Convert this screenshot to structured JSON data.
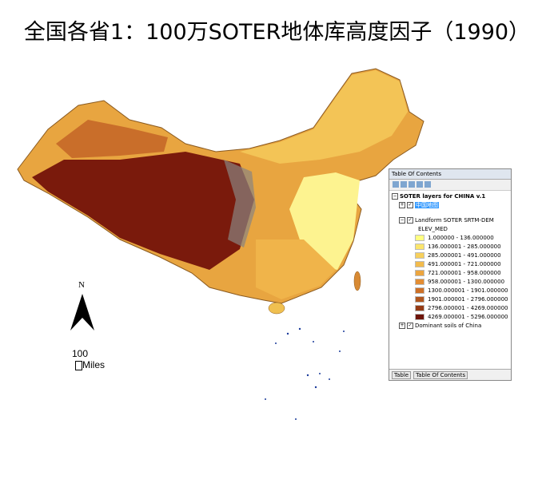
{
  "title": "全国各省1：100万SOTER地体库高度因子（1990）",
  "north_arrow": "N",
  "scale_bar": {
    "value": 100,
    "unit": "Miles"
  },
  "toc": {
    "header": "Table Of Contents",
    "root": "SOTER layers for CHINA v.1",
    "layers": [
      {
        "name": "中国地图"
      },
      {
        "name": "Landform SOTER SRTM-DEM",
        "field": "ELEV_MED",
        "classes": [
          {
            "label": "1.000000 - 136.000000",
            "color": "#ffff80"
          },
          {
            "label": "136.000001 - 285.000000",
            "color": "#fbe56c"
          },
          {
            "label": "285.000001 - 491.000000",
            "color": "#f7d05c"
          },
          {
            "label": "491.000001 - 721.000000",
            "color": "#f2bb4c"
          },
          {
            "label": "721.000001 - 958.000000",
            "color": "#eca53f"
          },
          {
            "label": "958.000001 - 1300.000000",
            "color": "#e38d33"
          },
          {
            "label": "1300.000001 - 1901.000000",
            "color": "#cd7027"
          },
          {
            "label": "1901.000001 - 2796.000000",
            "color": "#b0561e"
          },
          {
            "label": "2796.000001 - 4269.000000",
            "color": "#953b15"
          },
          {
            "label": "4269.000001 - 5296.000000",
            "color": "#6e140a"
          }
        ]
      },
      {
        "name": "Dominant soils of China"
      }
    ],
    "tabs": [
      "Table",
      "Table Of Contents"
    ]
  }
}
